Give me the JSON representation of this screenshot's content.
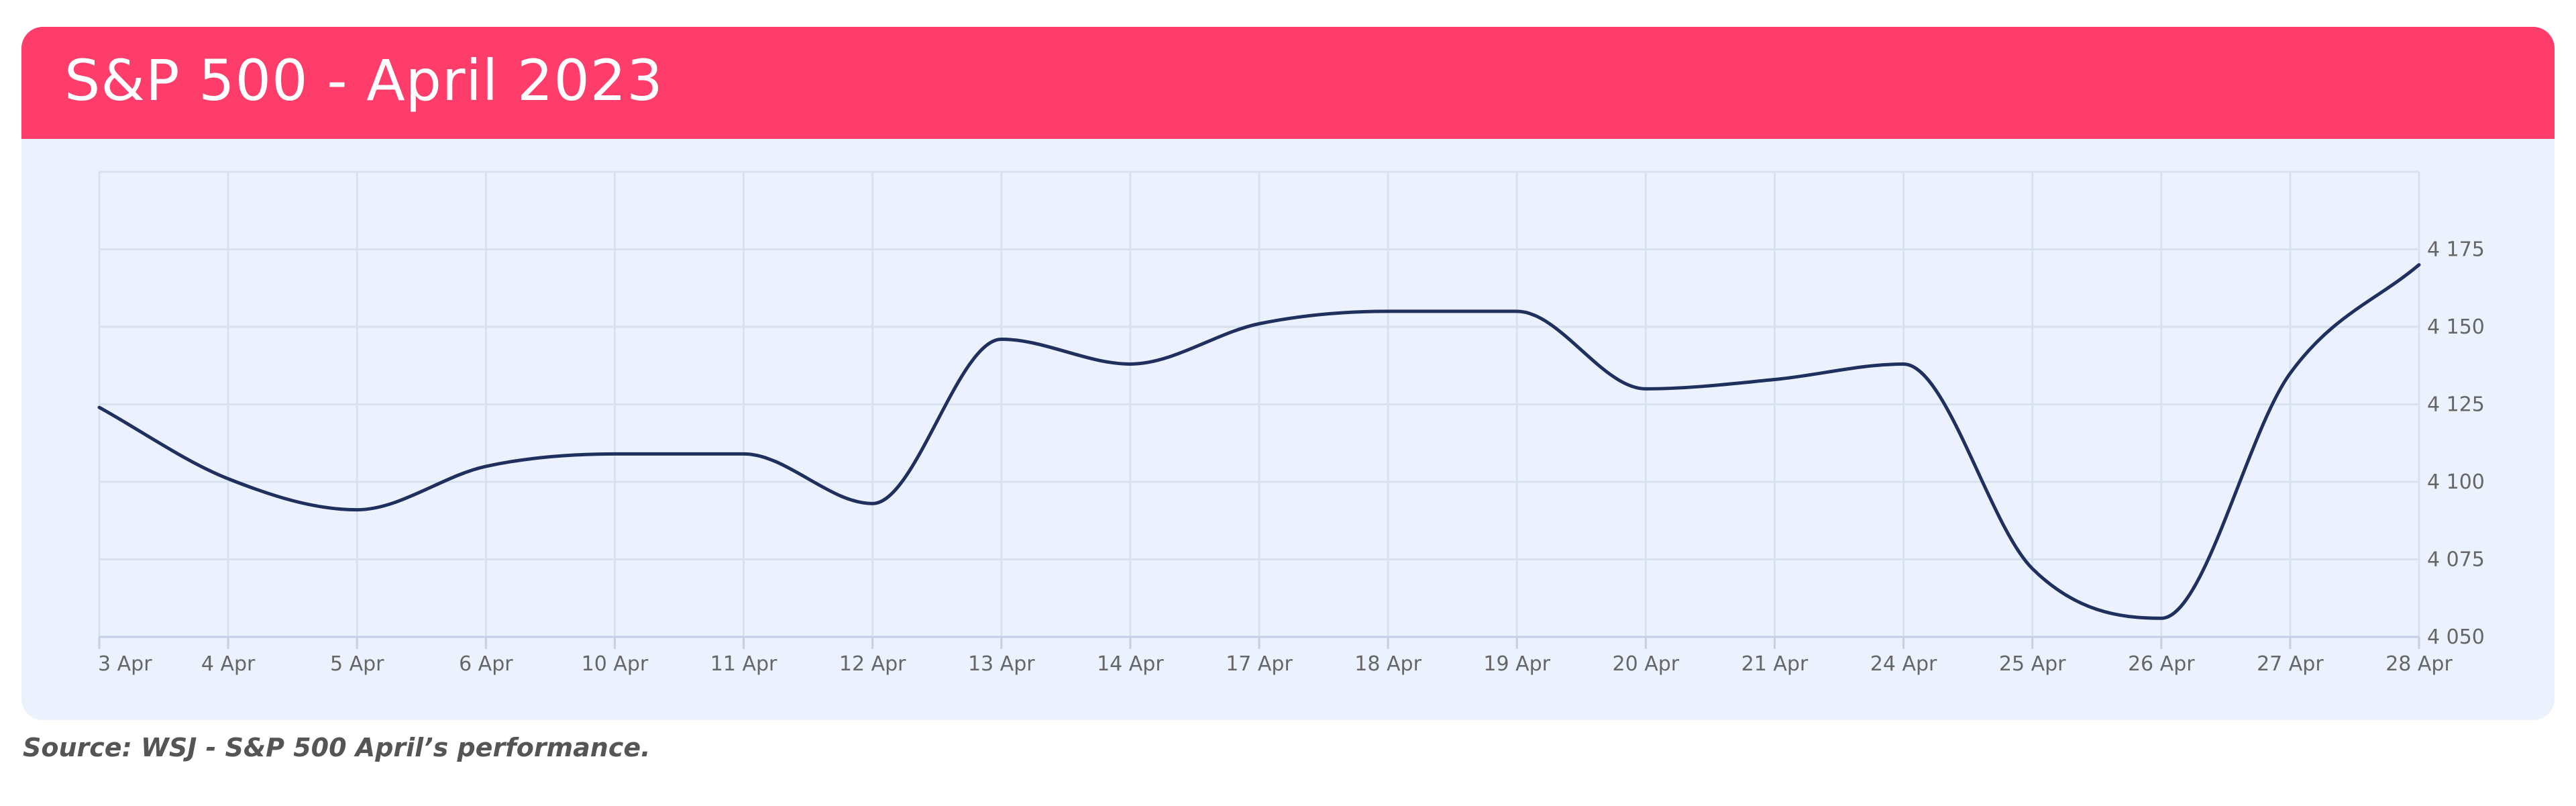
{
  "header": {
    "title": "S&P 500 - April 2023"
  },
  "caption": "Source: WSJ - S&P 500 April’s performance.",
  "colors": {
    "header_bg": "#ff3d6b",
    "panel_bg": "#ebf2fd",
    "line": "#1f2f5e",
    "grid": "#d8e1f0"
  },
  "chart_data": {
    "type": "line",
    "title": "S&P 500 - April 2023",
    "xlabel": "",
    "ylabel": "",
    "categories": [
      "3 Apr",
      "4 Apr",
      "5 Apr",
      "6 Apr",
      "10 Apr",
      "11 Apr",
      "12 Apr",
      "13 Apr",
      "14 Apr",
      "17 Apr",
      "18 Apr",
      "19 Apr",
      "20 Apr",
      "21 Apr",
      "24 Apr",
      "25 Apr",
      "26 Apr",
      "27 Apr",
      "28 Apr"
    ],
    "values": [
      4124,
      4101,
      4091,
      4105,
      4109,
      4109,
      4093,
      4146,
      4138,
      4151,
      4155,
      4155,
      4130,
      4133,
      4138,
      4072,
      4056,
      4135,
      4170
    ],
    "y_ticks": [
      4050,
      4075,
      4100,
      4125,
      4150,
      4175
    ],
    "y_tick_labels": [
      "4 050",
      "4 075",
      "4 100",
      "4 125",
      "4 150",
      "4 175"
    ],
    "ylim": [
      4050,
      4200
    ],
    "y_axis_position": "right",
    "grid": true,
    "legend": "none"
  }
}
